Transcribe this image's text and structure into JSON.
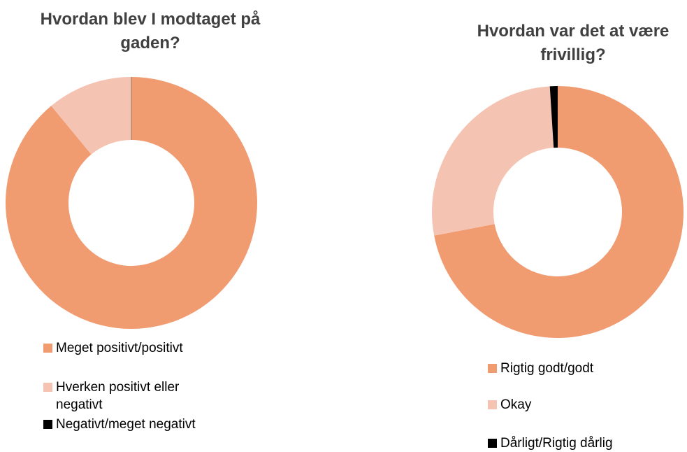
{
  "chart_data": [
    {
      "type": "donut",
      "title": "Hvordan blev I modtaget på gaden?",
      "categories": [
        "Meget positivt/positivt",
        "Hverken positivt eller negativt",
        "Negativt/meget negativt"
      ],
      "values": [
        89,
        11,
        0
      ],
      "colors": [
        "#f19b71",
        "#f5c3b2",
        "#000000"
      ]
    },
    {
      "type": "donut",
      "title": "Hvordan var det at være frivillig?",
      "categories": [
        "Rigtig godt/godt",
        "Okay",
        "Dårligt/Rigtig dårlig"
      ],
      "values": [
        72,
        27,
        1
      ],
      "colors": [
        "#f19b71",
        "#f5c3b2",
        "#000000"
      ]
    }
  ]
}
